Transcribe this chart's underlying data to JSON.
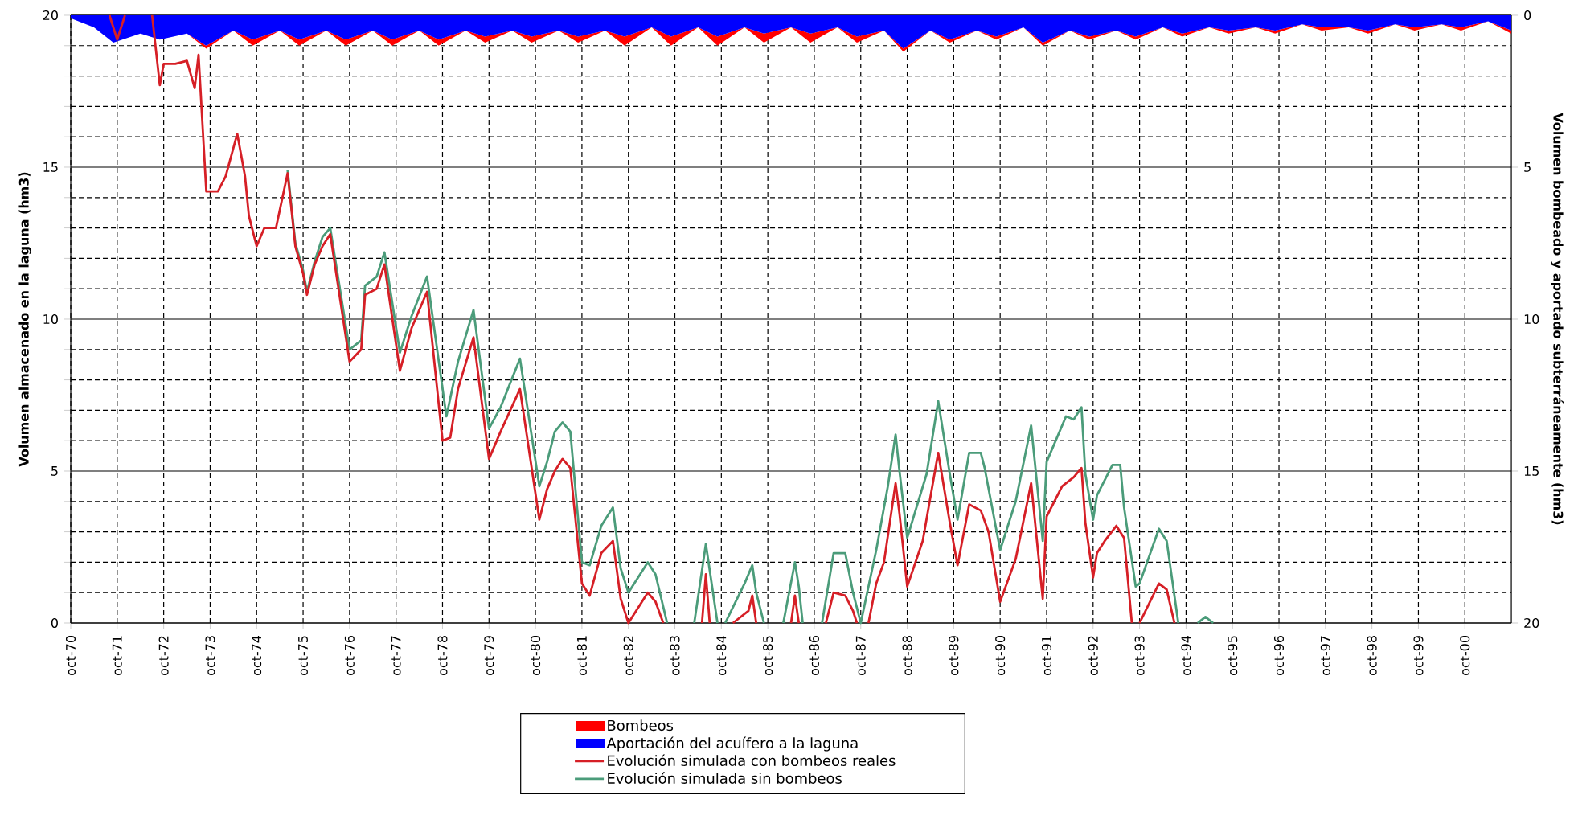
{
  "chart_data": {
    "type": "line",
    "ylabel": "Volumen almacenado en la laguna (hm3)",
    "y2label": "Volumen bombeado y aportado subterráneamente (hm3)",
    "xlim": [
      "1970-10",
      "2001-10"
    ],
    "xticks": [
      {
        "value": "1970-10",
        "label": "oct-70"
      },
      {
        "value": "1971-10",
        "label": "oct-71"
      },
      {
        "value": "1972-10",
        "label": "oct-72"
      },
      {
        "value": "1973-10",
        "label": "oct-73"
      },
      {
        "value": "1974-10",
        "label": "oct-74"
      },
      {
        "value": "1975-10",
        "label": "oct-75"
      },
      {
        "value": "1976-10",
        "label": "oct-76"
      },
      {
        "value": "1977-10",
        "label": "oct-77"
      },
      {
        "value": "1978-10",
        "label": "oct-78"
      },
      {
        "value": "1979-10",
        "label": "oct-79"
      },
      {
        "value": "1980-10",
        "label": "oct-80"
      },
      {
        "value": "1981-10",
        "label": "oct-81"
      },
      {
        "value": "1982-10",
        "label": "oct-82"
      },
      {
        "value": "1983-10",
        "label": "oct-83"
      },
      {
        "value": "1984-10",
        "label": "oct-84"
      },
      {
        "value": "1985-10",
        "label": "oct-85"
      },
      {
        "value": "1986-10",
        "label": "oct-86"
      },
      {
        "value": "1987-10",
        "label": "oct-87"
      },
      {
        "value": "1988-10",
        "label": "oct-88"
      },
      {
        "value": "1989-10",
        "label": "oct-89"
      },
      {
        "value": "1990-10",
        "label": "oct-90"
      },
      {
        "value": "1991-10",
        "label": "oct-91"
      },
      {
        "value": "1992-10",
        "label": "oct-92"
      },
      {
        "value": "1993-10",
        "label": "oct-93"
      },
      {
        "value": "1994-10",
        "label": "oct-94"
      },
      {
        "value": "1995-10",
        "label": "oct-95"
      },
      {
        "value": "1996-10",
        "label": "oct-96"
      },
      {
        "value": "1997-10",
        "label": "oct-97"
      },
      {
        "value": "1998-10",
        "label": "oct-98"
      },
      {
        "value": "1999-10",
        "label": "oct-99"
      },
      {
        "value": "2000-10",
        "label": "oct-00"
      }
    ],
    "ylim": [
      0,
      20
    ],
    "yticks": [
      0,
      {
        "value": 1,
        "label": null
      },
      {
        "value": 2,
        "label": null
      },
      {
        "value": 3,
        "label": null
      },
      {
        "value": 4,
        "label": null
      },
      5,
      {
        "value": 6,
        "label": null
      },
      {
        "value": 7,
        "label": null
      },
      {
        "value": 8,
        "label": null
      },
      {
        "value": 9,
        "label": null
      },
      10,
      {
        "value": 11,
        "label": null
      },
      {
        "value": 12,
        "label": null
      },
      {
        "value": 13,
        "label": null
      },
      {
        "value": 14,
        "label": null
      },
      15,
      {
        "value": 16,
        "label": null
      },
      {
        "value": 17,
        "label": null
      },
      {
        "value": 18,
        "label": null
      },
      {
        "value": 19,
        "label": null
      },
      20
    ],
    "y2lim": [
      20,
      0
    ],
    "y2ticks": [
      0,
      5,
      10,
      15,
      20
    ],
    "stacked": true,
    "grid": true,
    "legend": "bottom",
    "series": [
      {
        "name": "Aportación del acuífero a la laguna",
        "type": "area",
        "axis": "y2",
        "color": "#0000ff",
        "x": [
          "1970-10",
          "1971-04",
          "1971-09",
          "1972-04",
          "1972-09",
          "1973-04",
          "1973-09",
          "1974-04",
          "1974-09",
          "1975-04",
          "1975-09",
          "1976-04",
          "1976-09",
          "1977-04",
          "1977-09",
          "1978-04",
          "1978-09",
          "1979-04",
          "1979-09",
          "1980-04",
          "1980-09",
          "1981-04",
          "1981-09",
          "1982-04",
          "1982-09",
          "1983-04",
          "1983-09",
          "1984-04",
          "1984-09",
          "1985-04",
          "1985-09",
          "1986-04",
          "1986-09",
          "1987-04",
          "1987-09",
          "1988-04",
          "1988-09",
          "1989-04",
          "1989-09",
          "1990-04",
          "1990-09",
          "1991-04",
          "1991-09",
          "1992-04",
          "1992-09",
          "1993-04",
          "1993-09",
          "1994-04",
          "1994-09",
          "1995-04",
          "1995-09",
          "1996-04",
          "1996-09",
          "1997-04",
          "1997-09",
          "1998-04",
          "1998-09",
          "1999-04",
          "1999-09",
          "2000-04",
          "2000-09",
          "2001-04",
          "2001-10"
        ],
        "values": [
          0.1,
          0.4,
          0.9,
          0.6,
          0.8,
          0.6,
          1.0,
          0.5,
          0.8,
          0.5,
          0.8,
          0.5,
          0.8,
          0.5,
          0.8,
          0.5,
          0.8,
          0.5,
          0.7,
          0.5,
          0.7,
          0.5,
          0.7,
          0.5,
          0.7,
          0.4,
          0.7,
          0.4,
          0.7,
          0.4,
          0.6,
          0.4,
          0.6,
          0.4,
          0.7,
          0.5,
          1.1,
          0.5,
          0.8,
          0.5,
          0.7,
          0.4,
          0.9,
          0.5,
          0.7,
          0.5,
          0.7,
          0.4,
          0.6,
          0.4,
          0.5,
          0.4,
          0.5,
          0.3,
          0.4,
          0.4,
          0.5,
          0.3,
          0.4,
          0.3,
          0.4,
          0.2,
          0.5
        ]
      },
      {
        "name": "Bombeos",
        "type": "area",
        "axis": "y2",
        "color": "#ff0000",
        "x": [
          "1970-10",
          "1971-04",
          "1971-09",
          "1972-04",
          "1972-09",
          "1973-04",
          "1973-09",
          "1974-04",
          "1974-09",
          "1975-04",
          "1975-09",
          "1976-04",
          "1976-09",
          "1977-04",
          "1977-09",
          "1978-04",
          "1978-09",
          "1979-04",
          "1979-09",
          "1980-04",
          "1980-09",
          "1981-04",
          "1981-09",
          "1982-04",
          "1982-09",
          "1983-04",
          "1983-09",
          "1984-04",
          "1984-09",
          "1985-04",
          "1985-09",
          "1986-04",
          "1986-09",
          "1987-04",
          "1987-09",
          "1988-04",
          "1988-09",
          "1989-04",
          "1989-09",
          "1990-04",
          "1990-09",
          "1991-04",
          "1991-09",
          "1992-04",
          "1992-09",
          "1993-04",
          "1993-09",
          "1994-04",
          "1994-09",
          "1995-04",
          "1995-09",
          "1996-04",
          "1996-09",
          "1997-04",
          "1997-09",
          "1998-04",
          "1998-09",
          "1999-04",
          "1999-09",
          "2000-04",
          "2000-09",
          "2001-04",
          "2001-10"
        ],
        "values": [
          0,
          0,
          0,
          0,
          0,
          0,
          0.1,
          0,
          0.2,
          0,
          0.2,
          0,
          0.2,
          0,
          0.2,
          0,
          0.2,
          0,
          0.2,
          0,
          0.2,
          0,
          0.2,
          0,
          0.3,
          0,
          0.3,
          0,
          0.3,
          0,
          0.3,
          0,
          0.3,
          0,
          0.2,
          0,
          0.1,
          0,
          0.1,
          0,
          0.1,
          0,
          0.1,
          0,
          0.1,
          0,
          0.1,
          0,
          0.1,
          0,
          0.1,
          0,
          0.1,
          0,
          0.1,
          0,
          0.1,
          0,
          0.1,
          0,
          0.1,
          0,
          0.1
        ]
      },
      {
        "name": "Evolución simulada con bombeos reales",
        "color": "#d61f26",
        "x": [
          "1971-08",
          "1971-10",
          "1971-12",
          "1972-01",
          "1972-07",
          "1972-09",
          "1972-10",
          "1973-01",
          "1973-04",
          "1973-06",
          "1973-07",
          "1973-09",
          "1973-12",
          "1974-02",
          "1974-05",
          "1974-07",
          "1974-08",
          "1974-10",
          "1974-12",
          "1975-03",
          "1975-06",
          "1975-08",
          "1975-10",
          "1975-11",
          "1976-01",
          "1976-03",
          "1976-05",
          "1976-10",
          "1977-01",
          "1977-02",
          "1977-05",
          "1977-07",
          "1977-11",
          "1978-02",
          "1978-06",
          "1978-10",
          "1978-12",
          "1979-02",
          "1979-06",
          "1979-10",
          "1980-01",
          "1980-06",
          "1980-11",
          "1981-01",
          "1981-03",
          "1981-05",
          "1981-07",
          "1981-10",
          "1981-12",
          "1982-03",
          "1982-06",
          "1982-08",
          "1982-10",
          "1983-03",
          "1983-05",
          "1983-07",
          "1983-10",
          "1984-05",
          "1984-06",
          "1984-07",
          "1984-10",
          "1985-01",
          "1985-05",
          "1985-06",
          "1985-07",
          "1985-10",
          "1986-04",
          "1986-05",
          "1986-06",
          "1986-10",
          "1987-01",
          "1987-03",
          "1987-06",
          "1987-08",
          "1987-09",
          "1987-10",
          "1987-12",
          "1988-02",
          "1988-04",
          "1988-07",
          "1988-08",
          "1988-10",
          "1989-02",
          "1989-06",
          "1989-09",
          "1989-11",
          "1990-02",
          "1990-05",
          "1990-07",
          "1990-10",
          "1991-02",
          "1991-06",
          "1991-09",
          "1991-10",
          "1992-02",
          "1992-05",
          "1992-07",
          "1992-08",
          "1992-10",
          "1992-11",
          "1993-01",
          "1993-04",
          "1993-06",
          "1993-08",
          "1993-09",
          "1993-10",
          "1994-03",
          "1994-05",
          "1994-07"
        ],
        "values": [
          20,
          19.2,
          20,
          null,
          20,
          17.7,
          18.4,
          18.4,
          18.5,
          17.6,
          18.7,
          14.2,
          14.2,
          14.7,
          16.1,
          14.7,
          13.4,
          12.4,
          13.0,
          13.0,
          14.8,
          12.4,
          11.5,
          10.8,
          11.8,
          12.4,
          12.8,
          8.6,
          9.0,
          10.8,
          11.0,
          11.8,
          8.3,
          9.7,
          10.9,
          6.0,
          6.1,
          7.7,
          9.4,
          5.4,
          6.3,
          7.7,
          3.4,
          4.4,
          5.0,
          5.4,
          5.1,
          1.3,
          0.9,
          2.3,
          2.7,
          0.8,
          0,
          1.0,
          0.7,
          0,
          null,
          0,
          1.6,
          0,
          null,
          0,
          0.4,
          0.9,
          0,
          null,
          0,
          0.9,
          0,
          null,
          0,
          1.0,
          0.9,
          0.4,
          0,
          null,
          0,
          1.3,
          2.0,
          4.6,
          3.6,
          1.2,
          2.7,
          5.6,
          3.3,
          1.9,
          3.9,
          3.7,
          3.0,
          0.7,
          2.1,
          4.6,
          0.8,
          3.5,
          4.5,
          4.8,
          5.1,
          3.3,
          1.5,
          2.3,
          2.7,
          3.2,
          2.8,
          0,
          null,
          0,
          1.3,
          1.1,
          0
        ]
      },
      {
        "name": "Evolución simulada sin bombeos",
        "color": "#4b9c7a",
        "x": [
          "1975-06",
          "1975-08",
          "1975-10",
          "1975-11",
          "1976-01",
          "1976-03",
          "1976-05",
          "1976-10",
          "1977-01",
          "1977-02",
          "1977-05",
          "1977-07",
          "1977-11",
          "1978-02",
          "1978-06",
          "1978-11",
          "1979-02",
          "1979-06",
          "1979-10",
          "1980-01",
          "1980-06",
          "1980-11",
          "1981-01",
          "1981-03",
          "1981-05",
          "1981-07",
          "1981-10",
          "1981-12",
          "1982-03",
          "1982-06",
          "1982-08",
          "1982-10",
          "1983-03",
          "1983-05",
          "1983-08",
          "1983-10",
          "1984-03",
          "1984-06",
          "1984-09",
          "1984-10",
          "1984-11",
          "1985-04",
          "1985-06",
          "1985-07",
          "1985-09",
          "1985-11",
          "1986-02",
          "1986-05",
          "1986-06",
          "1986-07",
          "1986-10",
          "1986-12",
          "1987-03",
          "1987-06",
          "1987-08",
          "1987-10",
          "1988-02",
          "1988-05",
          "1988-07",
          "1988-08",
          "1988-10",
          "1989-03",
          "1989-06",
          "1989-09",
          "1989-11",
          "1990-02",
          "1990-05",
          "1990-06",
          "1990-10",
          "1991-02",
          "1991-06",
          "1991-09",
          "1991-10",
          "1992-03",
          "1992-05",
          "1992-07",
          "1992-08",
          "1992-10",
          "1992-11",
          "1993-03",
          "1993-05",
          "1993-06",
          "1993-09",
          "1993-10",
          "1994-03",
          "1994-05",
          "1994-08",
          "1994-11",
          "1995-01",
          "1995-03",
          "1995-05"
        ],
        "values": [
          14.9,
          12.5,
          11.6,
          10.9,
          11.9,
          12.7,
          13.0,
          9.0,
          9.3,
          11.1,
          11.4,
          12.2,
          8.9,
          10.1,
          11.4,
          6.8,
          8.6,
          10.3,
          6.4,
          7.1,
          8.7,
          4.5,
          5.3,
          6.3,
          6.6,
          6.3,
          2.0,
          1.9,
          3.2,
          3.8,
          1.8,
          1.0,
          2.0,
          1.6,
          0,
          null,
          0,
          2.6,
          0,
          null,
          0,
          1.3,
          1.9,
          1.0,
          0,
          null,
          0,
          2.0,
          1.2,
          0,
          null,
          0,
          2.3,
          2.3,
          1.0,
          0,
          2.4,
          4.5,
          6.2,
          5.0,
          2.8,
          4.9,
          7.3,
          4.9,
          3.4,
          5.6,
          5.6,
          5.1,
          2.4,
          4.0,
          6.5,
          2.7,
          5.3,
          6.8,
          6.7,
          7.1,
          4.9,
          3.4,
          4.2,
          5.2,
          5.2,
          3.8,
          1.2,
          1.3,
          3.1,
          2.7,
          0,
          null,
          0,
          0.2,
          0
        ]
      }
    ]
  }
}
